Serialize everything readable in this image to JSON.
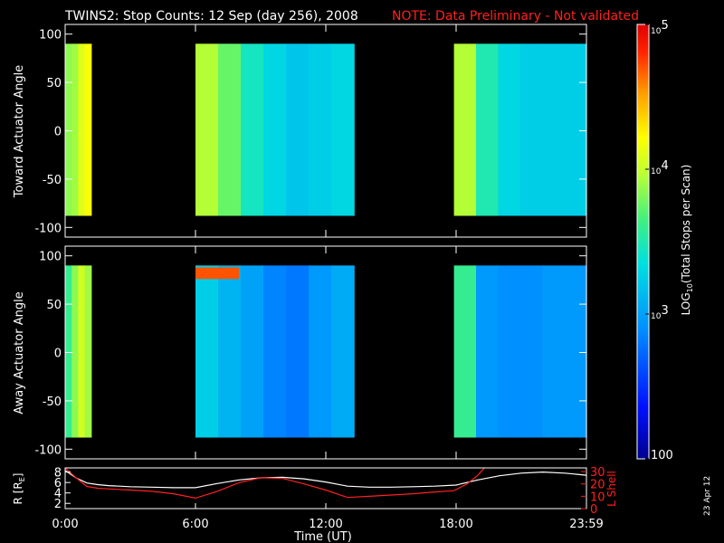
{
  "title": "TWINS2: Stop Counts: 12 Sep (day 256), 2008",
  "note": "NOTE: Data Preliminary - Not validated",
  "date_stamp": "23 Apr 12",
  "colors": {
    "note": "#ff2020",
    "lshell": "#ff2020",
    "radius": "#ffffff",
    "frame": "#ffffff",
    "background": "#000000"
  },
  "chart_data": [
    {
      "type": "heatmap",
      "panel": "toward",
      "ylabel": "Toward Actuator Angle",
      "xlim": [
        0,
        24
      ],
      "ylim": [
        -110,
        110
      ],
      "yticks": [
        "100",
        "50",
        "0",
        "-50",
        "-100"
      ],
      "ytick_values": [
        100,
        50,
        0,
        -50,
        -100
      ],
      "data_blocks": [
        {
          "x_range_hours": [
            0.0,
            1.2
          ],
          "angle_range": [
            -88,
            90
          ],
          "log_counts_profile": [
            3.85,
            3.9,
            4.1,
            4.2
          ]
        },
        {
          "x_range_hours": [
            6.0,
            13.3
          ],
          "angle_range": [
            -88,
            90
          ],
          "log_counts_profile": [
            3.95,
            3.75,
            3.45,
            3.3,
            3.2,
            3.25,
            3.3
          ]
        },
        {
          "x_range_hours": [
            17.9,
            24.0
          ],
          "angle_range": [
            -88,
            90
          ],
          "log_counts_profile": [
            3.95,
            3.5,
            3.3,
            3.25,
            3.25,
            3.25
          ]
        }
      ]
    },
    {
      "type": "heatmap",
      "panel": "away",
      "ylabel": "Away Actuator Angle",
      "xlim": [
        0,
        24
      ],
      "ylim": [
        -110,
        110
      ],
      "yticks": [
        "100",
        "50",
        "0",
        "-50",
        "-100"
      ],
      "ytick_values": [
        100,
        50,
        0,
        -50,
        -100
      ],
      "data_blocks": [
        {
          "x_range_hours": [
            0.0,
            1.2
          ],
          "angle_range": [
            -88,
            90
          ],
          "log_counts_profile": [
            3.6,
            3.85,
            4.05,
            3.9
          ]
        },
        {
          "x_range_hours": [
            6.0,
            13.3
          ],
          "angle_range": [
            -88,
            90
          ],
          "log_counts_profile": [
            3.25,
            3.1,
            3.0,
            2.85,
            2.8,
            2.95,
            3.05
          ],
          "hot_band_angle": [
            76,
            88
          ],
          "hot_band_hours": [
            6.0,
            8.0
          ],
          "hot_band_log": 4.7
        },
        {
          "x_range_hours": [
            17.9,
            24.0
          ],
          "angle_range": [
            -88,
            90
          ],
          "log_counts_profile": [
            3.6,
            2.95,
            2.9,
            2.9,
            2.95,
            2.95
          ]
        }
      ]
    },
    {
      "type": "line",
      "panel": "orbit",
      "xlabel": "Time (UT)",
      "ylabel": "R [R",
      "ylabel_sub": "E",
      "ylabel_end": "]",
      "y2label": "L Shell",
      "xlim": [
        0,
        24
      ],
      "xticks": [
        "0:00",
        "6:00",
        "12:00",
        "18:00",
        "23:59"
      ],
      "xtick_values": [
        0,
        6,
        12,
        18,
        24
      ],
      "yticks": [
        "8",
        "6",
        "4",
        "2"
      ],
      "ytick_values": [
        8,
        6,
        4,
        2
      ],
      "ylim": [
        1,
        8.8
      ],
      "y2ticks": [
        "30",
        "20",
        "10",
        "0"
      ],
      "y2tick_values": [
        30,
        20,
        10,
        0
      ],
      "y2lim": [
        0,
        33
      ],
      "series": [
        {
          "name": "R",
          "axis": "left",
          "x": [
            0,
            0.5,
            1,
            1.5,
            2,
            3,
            4,
            5,
            6,
            7,
            8,
            9,
            10,
            11,
            12,
            13,
            14,
            15,
            16,
            17,
            18,
            19,
            20,
            21,
            22,
            23,
            24
          ],
          "values": [
            8.3,
            6.9,
            5.9,
            5.6,
            5.4,
            5.2,
            5.1,
            5.0,
            5.0,
            5.8,
            6.5,
            6.9,
            7.0,
            6.7,
            6.1,
            5.3,
            5.1,
            5.1,
            5.2,
            5.3,
            5.5,
            6.5,
            7.3,
            7.8,
            8.0,
            7.8,
            7.4
          ]
        },
        {
          "name": "L Shell",
          "axis": "right",
          "x": [
            0,
            0.5,
            1,
            1.5,
            2,
            3,
            4,
            5,
            6,
            7,
            8,
            9,
            10,
            11,
            12,
            13,
            14,
            15,
            16,
            17,
            17.9,
            18.5,
            19,
            19.3
          ],
          "values": [
            33,
            25,
            18,
            16.5,
            16,
            15,
            14,
            12,
            8.5,
            14,
            21,
            25,
            24.5,
            20,
            15,
            9,
            10,
            11,
            12,
            13.5,
            14.5,
            20,
            27,
            33
          ]
        }
      ]
    },
    {
      "type": "heatmap",
      "panel": "colorbar",
      "label": "LOG",
      "label_sub": "10",
      "label_end": "(Total Stops per Scan)",
      "scale": "log",
      "range": [
        100,
        100000
      ],
      "ticks": [
        {
          "base": "10",
          "exp": "5"
        },
        {
          "base": "10",
          "exp": "4"
        },
        {
          "base": "10",
          "exp": "3"
        },
        {
          "base": "100",
          "exp": ""
        }
      ],
      "tick_values": [
        100000,
        10000,
        1000,
        100
      ]
    }
  ]
}
